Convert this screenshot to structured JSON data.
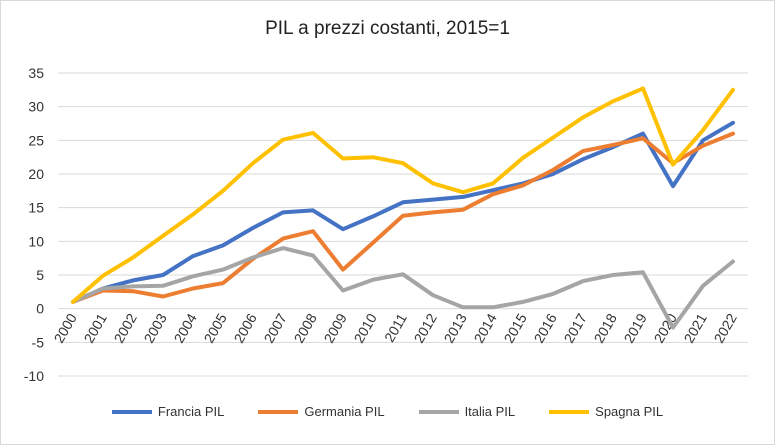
{
  "chart_data": {
    "type": "line",
    "title": "PIL a prezzi costanti, 2015=1",
    "xlabel": "",
    "ylabel": "",
    "x": [
      "2000",
      "2001",
      "2002",
      "2003",
      "2004",
      "2005",
      "2006",
      "2007",
      "2008",
      "2009",
      "2010",
      "2011",
      "2012",
      "2013",
      "2014",
      "2015",
      "2016",
      "2017",
      "2018",
      "2019",
      "2020",
      "2021",
      "2022"
    ],
    "ylim": [
      -10,
      35
    ],
    "yticks": [
      -10,
      -5,
      0,
      5,
      10,
      15,
      20,
      25,
      30,
      35
    ],
    "grid": true,
    "legend_position": "bottom",
    "series": [
      {
        "name": "Francia PIL",
        "color": "#4472c4",
        "values": [
          1,
          3,
          4.2,
          5,
          7.8,
          9.4,
          12,
          14.3,
          14.6,
          11.8,
          13.7,
          15.8,
          16.2,
          16.6,
          17.6,
          18.6,
          20,
          22.2,
          24,
          26,
          18.2,
          25,
          27.6
        ]
      },
      {
        "name": "Germania PIL",
        "color": "#ed7d31",
        "values": [
          1,
          2.7,
          2.6,
          1.8,
          3,
          3.8,
          7.4,
          10.4,
          11.5,
          5.8,
          9.8,
          13.8,
          14.3,
          14.7,
          17,
          18.3,
          20.6,
          23.4,
          24.3,
          25.3,
          21.6,
          24.2,
          26
        ]
      },
      {
        "name": "Italia PIL",
        "color": "#a5a5a5",
        "values": [
          1,
          3,
          3.3,
          3.4,
          4.8,
          5.8,
          7.6,
          9,
          7.9,
          2.7,
          4.3,
          5.1,
          2,
          0.2,
          0.2,
          1,
          2.2,
          4.1,
          5,
          5.4,
          -2.8,
          3.4,
          7
        ]
      },
      {
        "name": "Spagna PIL",
        "color": "#ffc000",
        "values": [
          1,
          4.9,
          7.6,
          10.8,
          14,
          17.5,
          21.6,
          25.1,
          26.1,
          22.3,
          22.5,
          21.6,
          18.6,
          17.3,
          18.6,
          22.4,
          25.4,
          28.4,
          30.8,
          32.7,
          21.4,
          26.5,
          32.5
        ]
      }
    ]
  }
}
